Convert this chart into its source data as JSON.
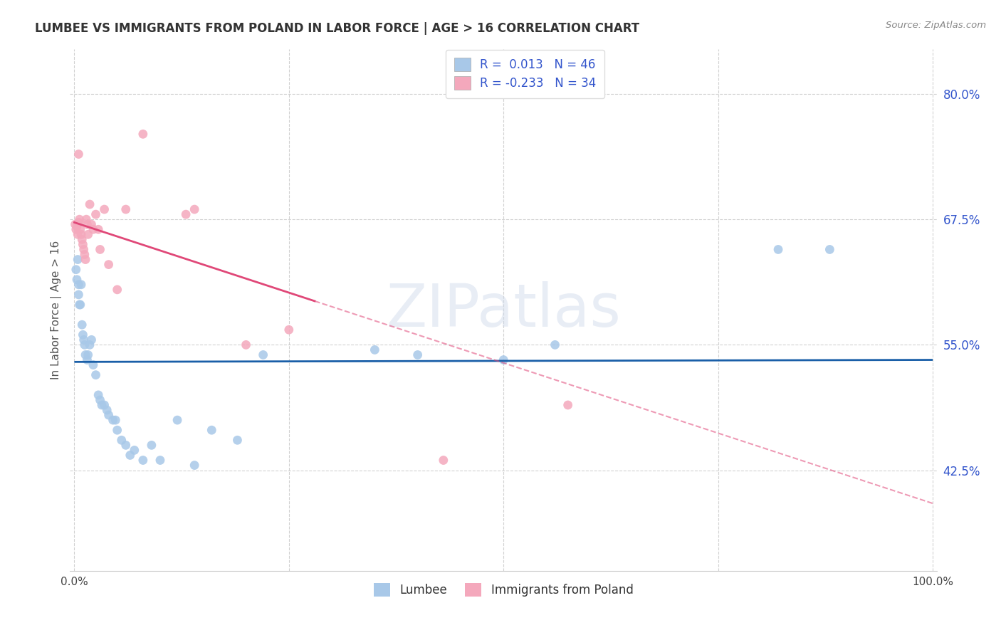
{
  "title": "LUMBEE VS IMMIGRANTS FROM POLAND IN LABOR FORCE | AGE > 16 CORRELATION CHART",
  "source": "Source: ZipAtlas.com",
  "ylabel": "In Labor Force | Age > 16",
  "xlim": [
    -0.005,
    1.005
  ],
  "ylim": [
    0.325,
    0.845
  ],
  "yticks": [
    0.425,
    0.55,
    0.675,
    0.8
  ],
  "ytick_labels": [
    "42.5%",
    "55.0%",
    "67.5%",
    "80.0%"
  ],
  "lumbee_R": "0.013",
  "lumbee_N": "46",
  "poland_R": "-0.233",
  "poland_N": "34",
  "lumbee_color": "#a8c8e8",
  "poland_color": "#f4a8bc",
  "lumbee_line_color": "#1a5fa8",
  "poland_line_color": "#e04878",
  "watermark": "ZIPatlas",
  "lumbee_intercept": 0.533,
  "lumbee_slope": 0.002,
  "poland_intercept": 0.672,
  "poland_slope": -0.28,
  "lumbee_x": [
    0.002,
    0.003,
    0.004,
    0.005,
    0.005,
    0.006,
    0.007,
    0.008,
    0.009,
    0.01,
    0.011,
    0.012,
    0.013,
    0.015,
    0.016,
    0.018,
    0.02,
    0.022,
    0.025,
    0.028,
    0.03,
    0.032,
    0.035,
    0.038,
    0.04,
    0.045,
    0.048,
    0.05,
    0.055,
    0.06,
    0.065,
    0.07,
    0.08,
    0.09,
    0.1,
    0.12,
    0.14,
    0.16,
    0.19,
    0.22,
    0.35,
    0.4,
    0.5,
    0.56,
    0.82,
    0.88
  ],
  "lumbee_y": [
    0.625,
    0.615,
    0.635,
    0.61,
    0.6,
    0.59,
    0.59,
    0.61,
    0.57,
    0.56,
    0.555,
    0.55,
    0.54,
    0.535,
    0.54,
    0.55,
    0.555,
    0.53,
    0.52,
    0.5,
    0.495,
    0.49,
    0.49,
    0.485,
    0.48,
    0.475,
    0.475,
    0.465,
    0.455,
    0.45,
    0.44,
    0.445,
    0.435,
    0.45,
    0.435,
    0.475,
    0.43,
    0.465,
    0.455,
    0.54,
    0.545,
    0.54,
    0.535,
    0.55,
    0.645,
    0.645
  ],
  "poland_x": [
    0.001,
    0.002,
    0.003,
    0.004,
    0.005,
    0.005,
    0.006,
    0.007,
    0.008,
    0.009,
    0.01,
    0.011,
    0.012,
    0.013,
    0.014,
    0.015,
    0.016,
    0.018,
    0.02,
    0.022,
    0.025,
    0.028,
    0.03,
    0.035,
    0.04,
    0.05,
    0.06,
    0.08,
    0.13,
    0.14,
    0.2,
    0.25,
    0.43,
    0.575
  ],
  "poland_y": [
    0.67,
    0.665,
    0.668,
    0.66,
    0.672,
    0.74,
    0.675,
    0.665,
    0.66,
    0.655,
    0.65,
    0.645,
    0.64,
    0.635,
    0.675,
    0.67,
    0.66,
    0.69,
    0.67,
    0.665,
    0.68,
    0.665,
    0.645,
    0.685,
    0.63,
    0.605,
    0.685,
    0.76,
    0.68,
    0.685,
    0.55,
    0.565,
    0.435,
    0.49
  ]
}
